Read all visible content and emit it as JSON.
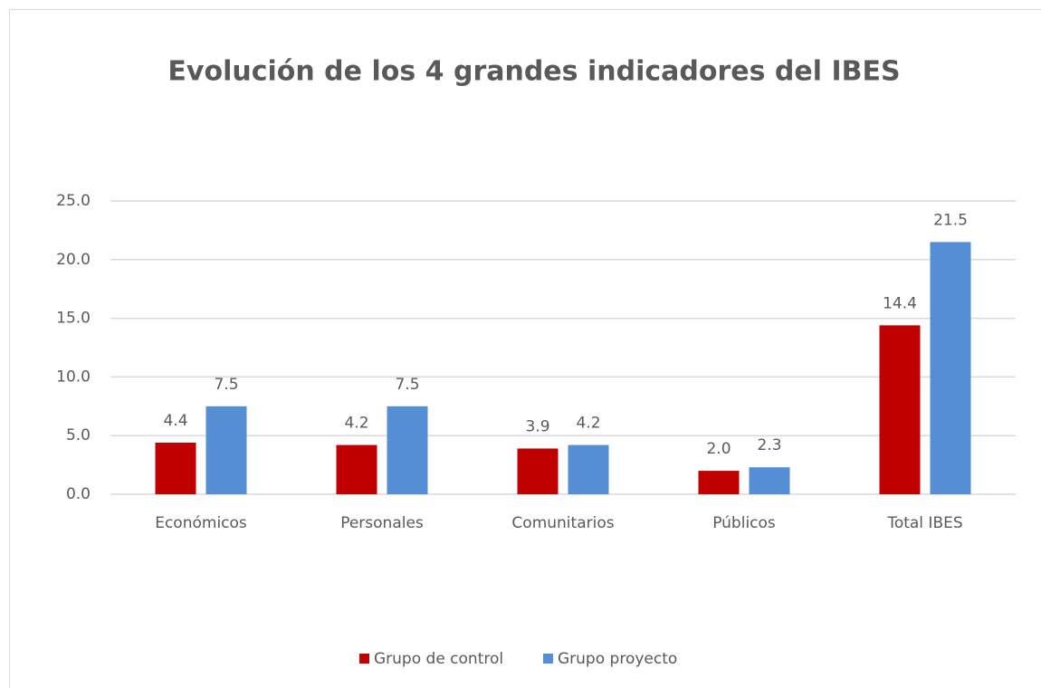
{
  "chart_data": {
    "type": "bar",
    "title": "Evolución de los 4 grandes indicadores del IBES",
    "categories": [
      "Económicos",
      "Personales",
      "Comunitarios",
      "Públicos",
      "Total IBES"
    ],
    "series": [
      {
        "name": "Grupo de control",
        "color": "#c00000",
        "values": [
          4.4,
          4.2,
          3.9,
          2.0,
          14.4
        ],
        "value_labels": [
          "4.4",
          "4.2",
          "3.9",
          "2.0",
          "14.4"
        ]
      },
      {
        "name": "Grupo proyecto",
        "color": "#558ed5",
        "values": [
          7.5,
          7.5,
          4.2,
          2.3,
          21.5
        ],
        "value_labels": [
          "7.5",
          "7.5",
          "4.2",
          "2.3",
          "21.5"
        ]
      }
    ],
    "ylim": [
      0,
      25
    ],
    "yticks": [
      {
        "value": 0,
        "label": "0.0"
      },
      {
        "value": 5,
        "label": "5.0"
      },
      {
        "value": 10,
        "label": "10.0"
      },
      {
        "value": 15,
        "label": "15.0"
      },
      {
        "value": 20,
        "label": "20.0"
      },
      {
        "value": 25,
        "label": "25.0"
      }
    ],
    "grid": true,
    "legend": "bottom"
  }
}
